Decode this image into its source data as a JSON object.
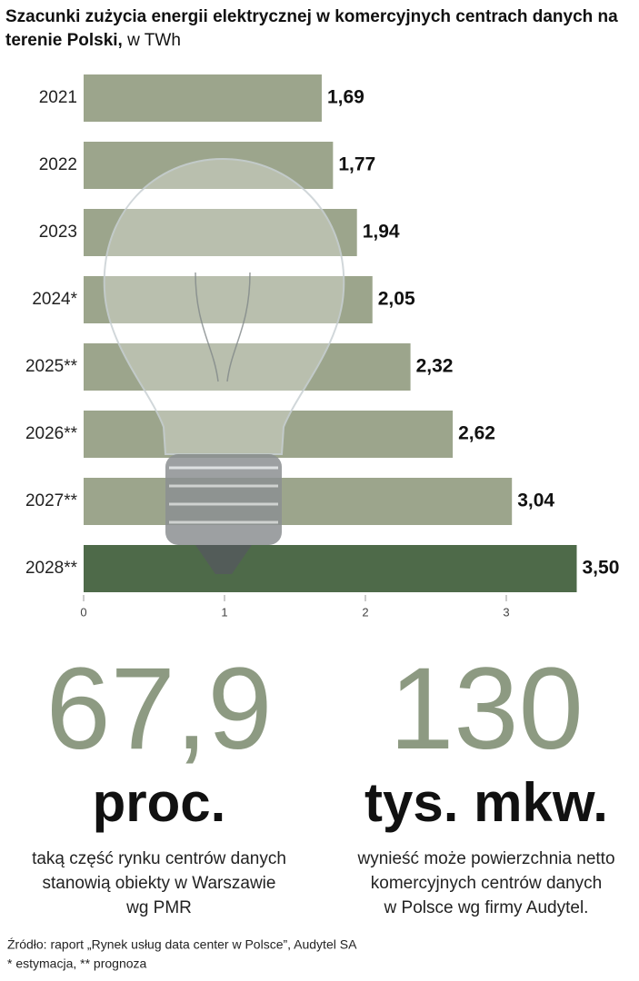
{
  "chart_data": {
    "type": "hbar",
    "title": "Szacunki zużycia energii elektrycznej w komercyjnych centrach danych na terenie Polski,",
    "unit": "w TWh",
    "categories": [
      "2021",
      "2022",
      "2023",
      "2024*",
      "2025**",
      "2026**",
      "2027**",
      "2028**"
    ],
    "values": [
      1.69,
      1.77,
      1.94,
      2.05,
      2.32,
      2.62,
      3.04,
      3.5
    ],
    "value_labels": [
      "1,69",
      "1,77",
      "1,94",
      "2,05",
      "2,32",
      "2,62",
      "3,04",
      "3,50"
    ],
    "colors": [
      "#9ca58c",
      "#9ca58c",
      "#9ca58c",
      "#9ca58c",
      "#9ca58c",
      "#9ca58c",
      "#9ca58c",
      "#4e6a49"
    ],
    "xlim": [
      0,
      3.5
    ],
    "xticks": [
      0,
      1,
      2,
      3
    ]
  },
  "stats": [
    {
      "number": "67,9",
      "unit": "proc.",
      "lines": [
        "taką część rynku centrów danych",
        "stanowią obiekty w Warszawie",
        "wg PMR"
      ]
    },
    {
      "number": "130",
      "unit": "tys. mkw.",
      "lines": [
        "wynieść może powierzchnia netto",
        "komercyjnych centrów danych",
        "w Polsce wg firmy Audytel."
      ]
    }
  ],
  "source": "Źródło: raport „Rynek usług data center w Polsce”, Audytel SA",
  "note": "* estymacja, ** prognoza"
}
